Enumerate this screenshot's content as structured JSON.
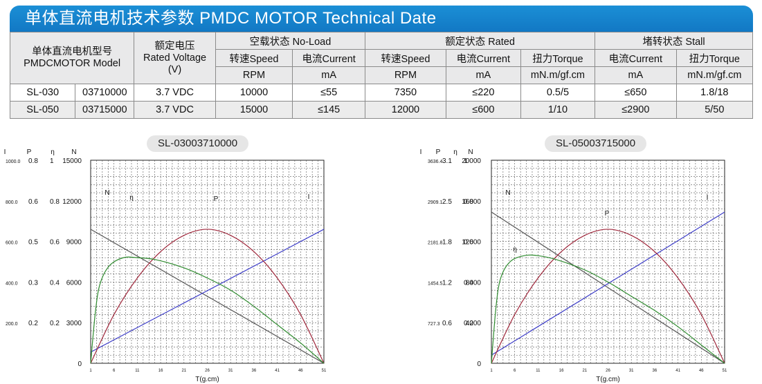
{
  "header": {
    "title": "单体直流电机技术参数  PMDC MOTOR Technical Date"
  },
  "table": {
    "model_header_cn": "单体直流电机型号",
    "model_header_en": "PMDCMOTOR Model",
    "voltage_header_cn": "额定电压",
    "voltage_header_en": "Rated Voltage",
    "voltage_header_unit": "(V)",
    "group_noload": "空载状态 No-Load",
    "group_rated": "额定状态 Rated",
    "group_stall": "堵转状态 Stall",
    "sub_speed": "转速Speed",
    "sub_current": "电流Current",
    "sub_torque": "扭力Torque",
    "unit_rpm": "RPM",
    "unit_ma": "mA",
    "unit_torque": "mN.m/gf.cm",
    "rows": [
      {
        "model": "SL-030",
        "code": "03710000",
        "voltage": "3.7 VDC",
        "nl_speed": "10000",
        "nl_current": "≤55",
        "r_speed": "7350",
        "r_current": "≤220",
        "r_torque": "0.5/5",
        "s_current": "≤650",
        "s_torque": "1.8/18"
      },
      {
        "model": "SL-050",
        "code": "03715000",
        "voltage": "3.7 VDC",
        "nl_speed": "15000",
        "nl_current": "≤145",
        "r_speed": "12000",
        "r_current": "≤600",
        "r_torque": "1/10",
        "s_current": "≤2900",
        "s_torque": "5/50"
      }
    ]
  },
  "chart_data": [
    {
      "type": "line",
      "title": "SL-03003710000",
      "xlabel": "T(g.cm)",
      "x_ticks": [
        "1",
        "6",
        "11",
        "16",
        "21",
        "26",
        "31",
        "36",
        "41",
        "46",
        "51"
      ],
      "axis_headers": [
        "I",
        "P",
        "η",
        "N"
      ],
      "y_tick_rows": [
        [
          "1000.0",
          "0.8",
          "1",
          "15000"
        ],
        [
          "800.0",
          "0.6",
          "0.8",
          "12000"
        ],
        [
          "600.0",
          "0.5",
          "0.6",
          "9000"
        ],
        [
          "400.0",
          "0.3",
          "0.4",
          "6000"
        ],
        [
          "200.0",
          "0.2",
          "0.2",
          "3000"
        ],
        [
          "",
          "",
          "",
          "0"
        ]
      ],
      "xlim": [
        1,
        51
      ],
      "grid": true,
      "series": [
        {
          "name": "N",
          "color": "#555555",
          "x": [
            1,
            51
          ],
          "y": [
            0.66,
            0.0
          ]
        },
        {
          "name": "I",
          "color": "#3c3cc8",
          "x": [
            1,
            51
          ],
          "y": [
            0.055,
            0.66
          ]
        },
        {
          "name": "P",
          "color": "#a0283c",
          "x": [
            1,
            6,
            11,
            16,
            21,
            26,
            31,
            36,
            41,
            46,
            51
          ],
          "y": [
            0.0,
            0.24,
            0.42,
            0.55,
            0.63,
            0.66,
            0.63,
            0.55,
            0.42,
            0.24,
            0.0
          ]
        },
        {
          "name": "η",
          "color": "#2e8b2e",
          "x": [
            1,
            2,
            3,
            5,
            8,
            11,
            15,
            21,
            26,
            31,
            36,
            41,
            46,
            51
          ],
          "y": [
            0.0,
            0.25,
            0.39,
            0.48,
            0.52,
            0.52,
            0.51,
            0.47,
            0.42,
            0.36,
            0.28,
            0.19,
            0.1,
            0.0
          ]
        }
      ],
      "curve_labels": [
        "N",
        "η",
        "P",
        "I"
      ]
    },
    {
      "type": "line",
      "title": "SL-05003715000",
      "xlabel": "T(g.cm)",
      "x_ticks": [
        "1",
        "6",
        "11",
        "16",
        "21",
        "26",
        "31",
        "36",
        "41",
        "46",
        "51"
      ],
      "axis_headers": [
        "I",
        "P",
        "η",
        "N"
      ],
      "y_tick_rows": [
        [
          "3636.4",
          "3.1",
          "1",
          "20000"
        ],
        [
          "2909.1",
          "2.5",
          "0.8",
          "16000"
        ],
        [
          "2181.8",
          "1.8",
          "0.6",
          "12000"
        ],
        [
          "1454.5",
          "1.2",
          "0.4",
          "8000"
        ],
        [
          "727.3",
          "0.6",
          "0.2",
          "4000"
        ],
        [
          "",
          "",
          "",
          "0"
        ]
      ],
      "xlim": [
        1,
        51
      ],
      "grid": true,
      "series": [
        {
          "name": "N",
          "color": "#555555",
          "x": [
            1,
            51
          ],
          "y": [
            0.745,
            0.0
          ]
        },
        {
          "name": "I",
          "color": "#3c3cc8",
          "x": [
            1,
            51
          ],
          "y": [
            0.04,
            0.745
          ]
        },
        {
          "name": "P",
          "color": "#a0283c",
          "x": [
            1,
            6,
            11,
            16,
            21,
            26,
            31,
            36,
            41,
            46,
            51
          ],
          "y": [
            0.0,
            0.24,
            0.42,
            0.55,
            0.63,
            0.66,
            0.63,
            0.55,
            0.42,
            0.24,
            0.0
          ]
        },
        {
          "name": "η",
          "color": "#2e8b2e",
          "x": [
            1,
            2,
            3,
            5,
            8,
            11,
            15,
            21,
            26,
            31,
            36,
            41,
            46,
            51
          ],
          "y": [
            0.0,
            0.28,
            0.42,
            0.5,
            0.53,
            0.53,
            0.51,
            0.46,
            0.4,
            0.33,
            0.26,
            0.18,
            0.09,
            0.0
          ]
        }
      ],
      "curve_labels": [
        "N",
        "η",
        "P",
        "I"
      ]
    }
  ]
}
